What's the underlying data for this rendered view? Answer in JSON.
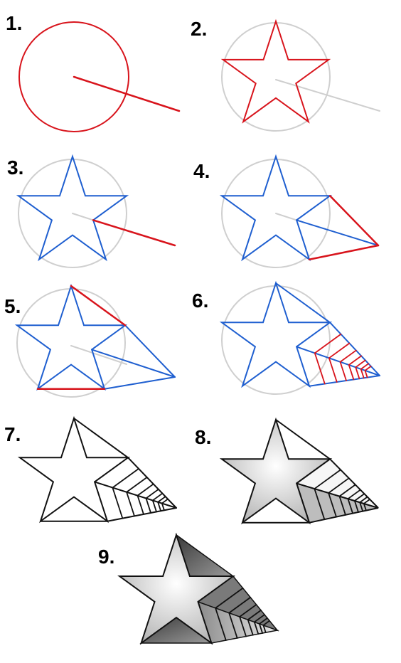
{
  "steps": [
    {
      "label": "1."
    },
    {
      "label": "2."
    },
    {
      "label": "3."
    },
    {
      "label": "4."
    },
    {
      "label": "5."
    },
    {
      "label": "6."
    },
    {
      "label": "7."
    },
    {
      "label": "8."
    },
    {
      "label": "9."
    }
  ],
  "colors": {
    "guide_red": "#d8141c",
    "construction_blue": "#1f5fd0",
    "faded_gray": "#cfcfcf",
    "ink_black": "#111111",
    "shade_light": "#f4f4f4",
    "shade_mid": "#bdbdbd",
    "shade_dark": "#555555"
  }
}
